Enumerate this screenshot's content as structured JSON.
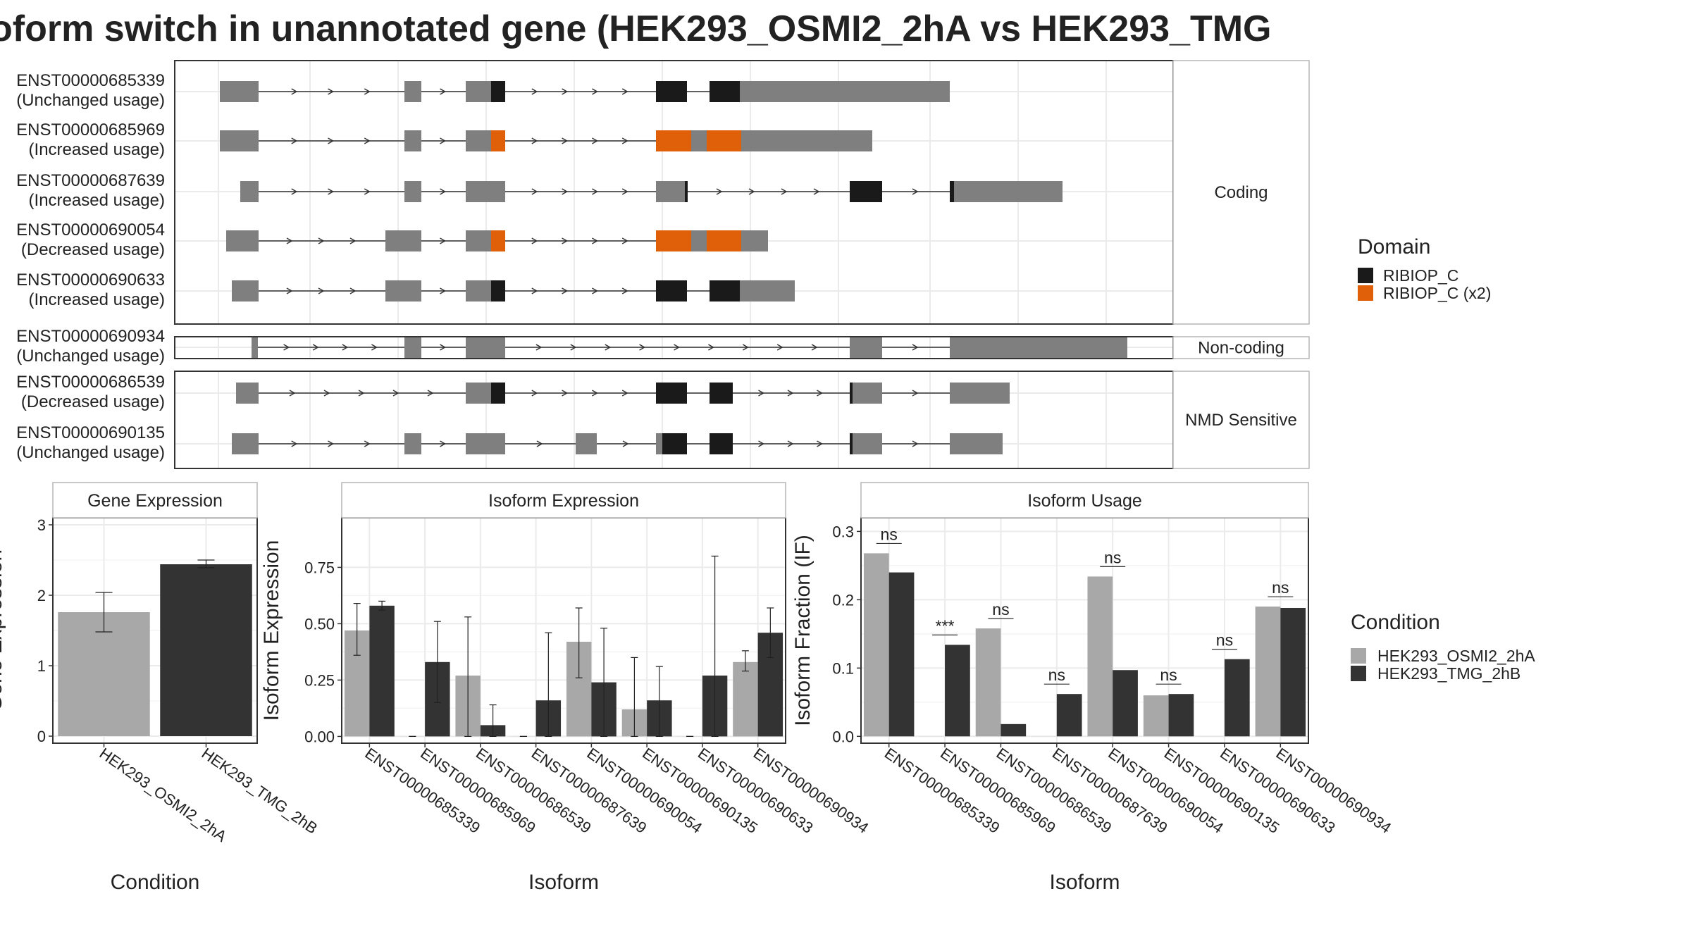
{
  "title": "oform switch in unannotated gene (HEK293_OSMI2_2hA vs HEK293_TMG",
  "colors": {
    "exon": "#7f7f7f",
    "domain_single": "#1a1a1a",
    "domain_double": "#e0600a",
    "cond_a": "#a8a8a8",
    "cond_b": "#333333",
    "grid": "#ebebeb",
    "border": "#333333"
  },
  "transcript_plot": {
    "facets": [
      {
        "label": "Coding"
      },
      {
        "label": "Non-coding"
      },
      {
        "label": "NMD Sensitive"
      }
    ],
    "isoforms": [
      {
        "id": "ENST00000685339",
        "usage": "(Unchanged usage)",
        "facet": 0
      },
      {
        "id": "ENST00000685969",
        "usage": "(Increased usage)",
        "facet": 0
      },
      {
        "id": "ENST00000687639",
        "usage": "(Increased usage)",
        "facet": 0
      },
      {
        "id": "ENST00000690054",
        "usage": "(Decreased usage)",
        "facet": 0
      },
      {
        "id": "ENST00000690633",
        "usage": "(Increased usage)",
        "facet": 0
      },
      {
        "id": "ENST00000690934",
        "usage": "(Unchanged usage)",
        "facet": 1
      },
      {
        "id": "ENST00000686539",
        "usage": "(Decreased usage)",
        "facet": 2
      },
      {
        "id": "ENST00000690135",
        "usage": "(Unchanged usage)",
        "facet": 2
      }
    ],
    "legend": {
      "title": "Domain",
      "items": [
        {
          "label": "RIBIOP_C",
          "color": "#1a1a1a"
        },
        {
          "label": "RIBIOP_C (x2)",
          "color": "#e0600a"
        }
      ]
    }
  },
  "chart_data": [
    {
      "type": "bar",
      "title": "Gene Expression",
      "xlabel": "Condition",
      "ylabel": "Gene Expression",
      "ylim": [
        -0.1,
        3.1
      ],
      "yticks": [
        0,
        1,
        2,
        3
      ],
      "categories": [
        "HEK293_OSMI2_2hA",
        "HEK293_TMG_2hB"
      ],
      "values": [
        1.76,
        2.44
      ],
      "error": [
        [
          1.48,
          2.04
        ],
        [
          2.39,
          2.5
        ]
      ],
      "bar_colors": [
        "#a8a8a8",
        "#333333"
      ]
    },
    {
      "type": "bar",
      "title": "Isoform Expression",
      "xlabel": "Isoform",
      "ylabel": "Isoform Expression",
      "ylim": [
        -0.03,
        0.97
      ],
      "yticks": [
        "0.00",
        "0.25",
        "0.50",
        "0.75"
      ],
      "categories": [
        "ENST00000685339",
        "ENST00000685969",
        "ENST00000686539",
        "ENST00000687639",
        "ENST00000690054",
        "ENST00000690135",
        "ENST00000690633",
        "ENST00000690934"
      ],
      "series": [
        {
          "name": "HEK293_OSMI2_2hA",
          "values": [
            0.47,
            0.0,
            0.27,
            0.0,
            0.42,
            0.12,
            0.0,
            0.33
          ],
          "error": [
            [
              0.36,
              0.59
            ],
            [
              0.0,
              0.0
            ],
            [
              0.0,
              0.53
            ],
            [
              0.0,
              0.0
            ],
            [
              0.26,
              0.57
            ],
            [
              0.0,
              0.35
            ],
            [
              0.0,
              0.0
            ],
            [
              0.29,
              0.38
            ]
          ]
        },
        {
          "name": "HEK293_TMG_2hB",
          "values": [
            0.58,
            0.33,
            0.05,
            0.16,
            0.24,
            0.16,
            0.27,
            0.46
          ],
          "error": [
            [
              0.56,
              0.6
            ],
            [
              0.15,
              0.51
            ],
            [
              0.0,
              0.14
            ],
            [
              0.0,
              0.46
            ],
            [
              0.0,
              0.48
            ],
            [
              0.0,
              0.31
            ],
            [
              0.0,
              0.8
            ],
            [
              0.35,
              0.57
            ]
          ]
        }
      ]
    },
    {
      "type": "bar",
      "title": "Isoform Usage",
      "xlabel": "Isoform",
      "ylabel": "Isoform Fraction (IF)",
      "ylim": [
        -0.01,
        0.32
      ],
      "yticks": [
        "0.0",
        "0.1",
        "0.2",
        "0.3"
      ],
      "categories": [
        "ENST00000685339",
        "ENST00000685969",
        "ENST00000686539",
        "ENST00000687639",
        "ENST00000690054",
        "ENST00000690135",
        "ENST00000690633",
        "ENST00000690934"
      ],
      "series": [
        {
          "name": "HEK293_OSMI2_2hA",
          "values": [
            0.268,
            0.0,
            0.158,
            0.0,
            0.234,
            0.06,
            0.0,
            0.19
          ]
        },
        {
          "name": "HEK293_TMG_2hB",
          "values": [
            0.24,
            0.134,
            0.018,
            0.062,
            0.097,
            0.062,
            0.113,
            0.188
          ]
        }
      ],
      "significance": [
        "ns",
        "***",
        "ns",
        "ns",
        "ns",
        "ns",
        "ns",
        "ns"
      ]
    }
  ],
  "condition_legend": {
    "title": "Condition",
    "items": [
      {
        "label": "HEK293_OSMI2_2hA",
        "color": "#a8a8a8"
      },
      {
        "label": "HEK293_TMG_2hB",
        "color": "#333333"
      }
    ]
  }
}
